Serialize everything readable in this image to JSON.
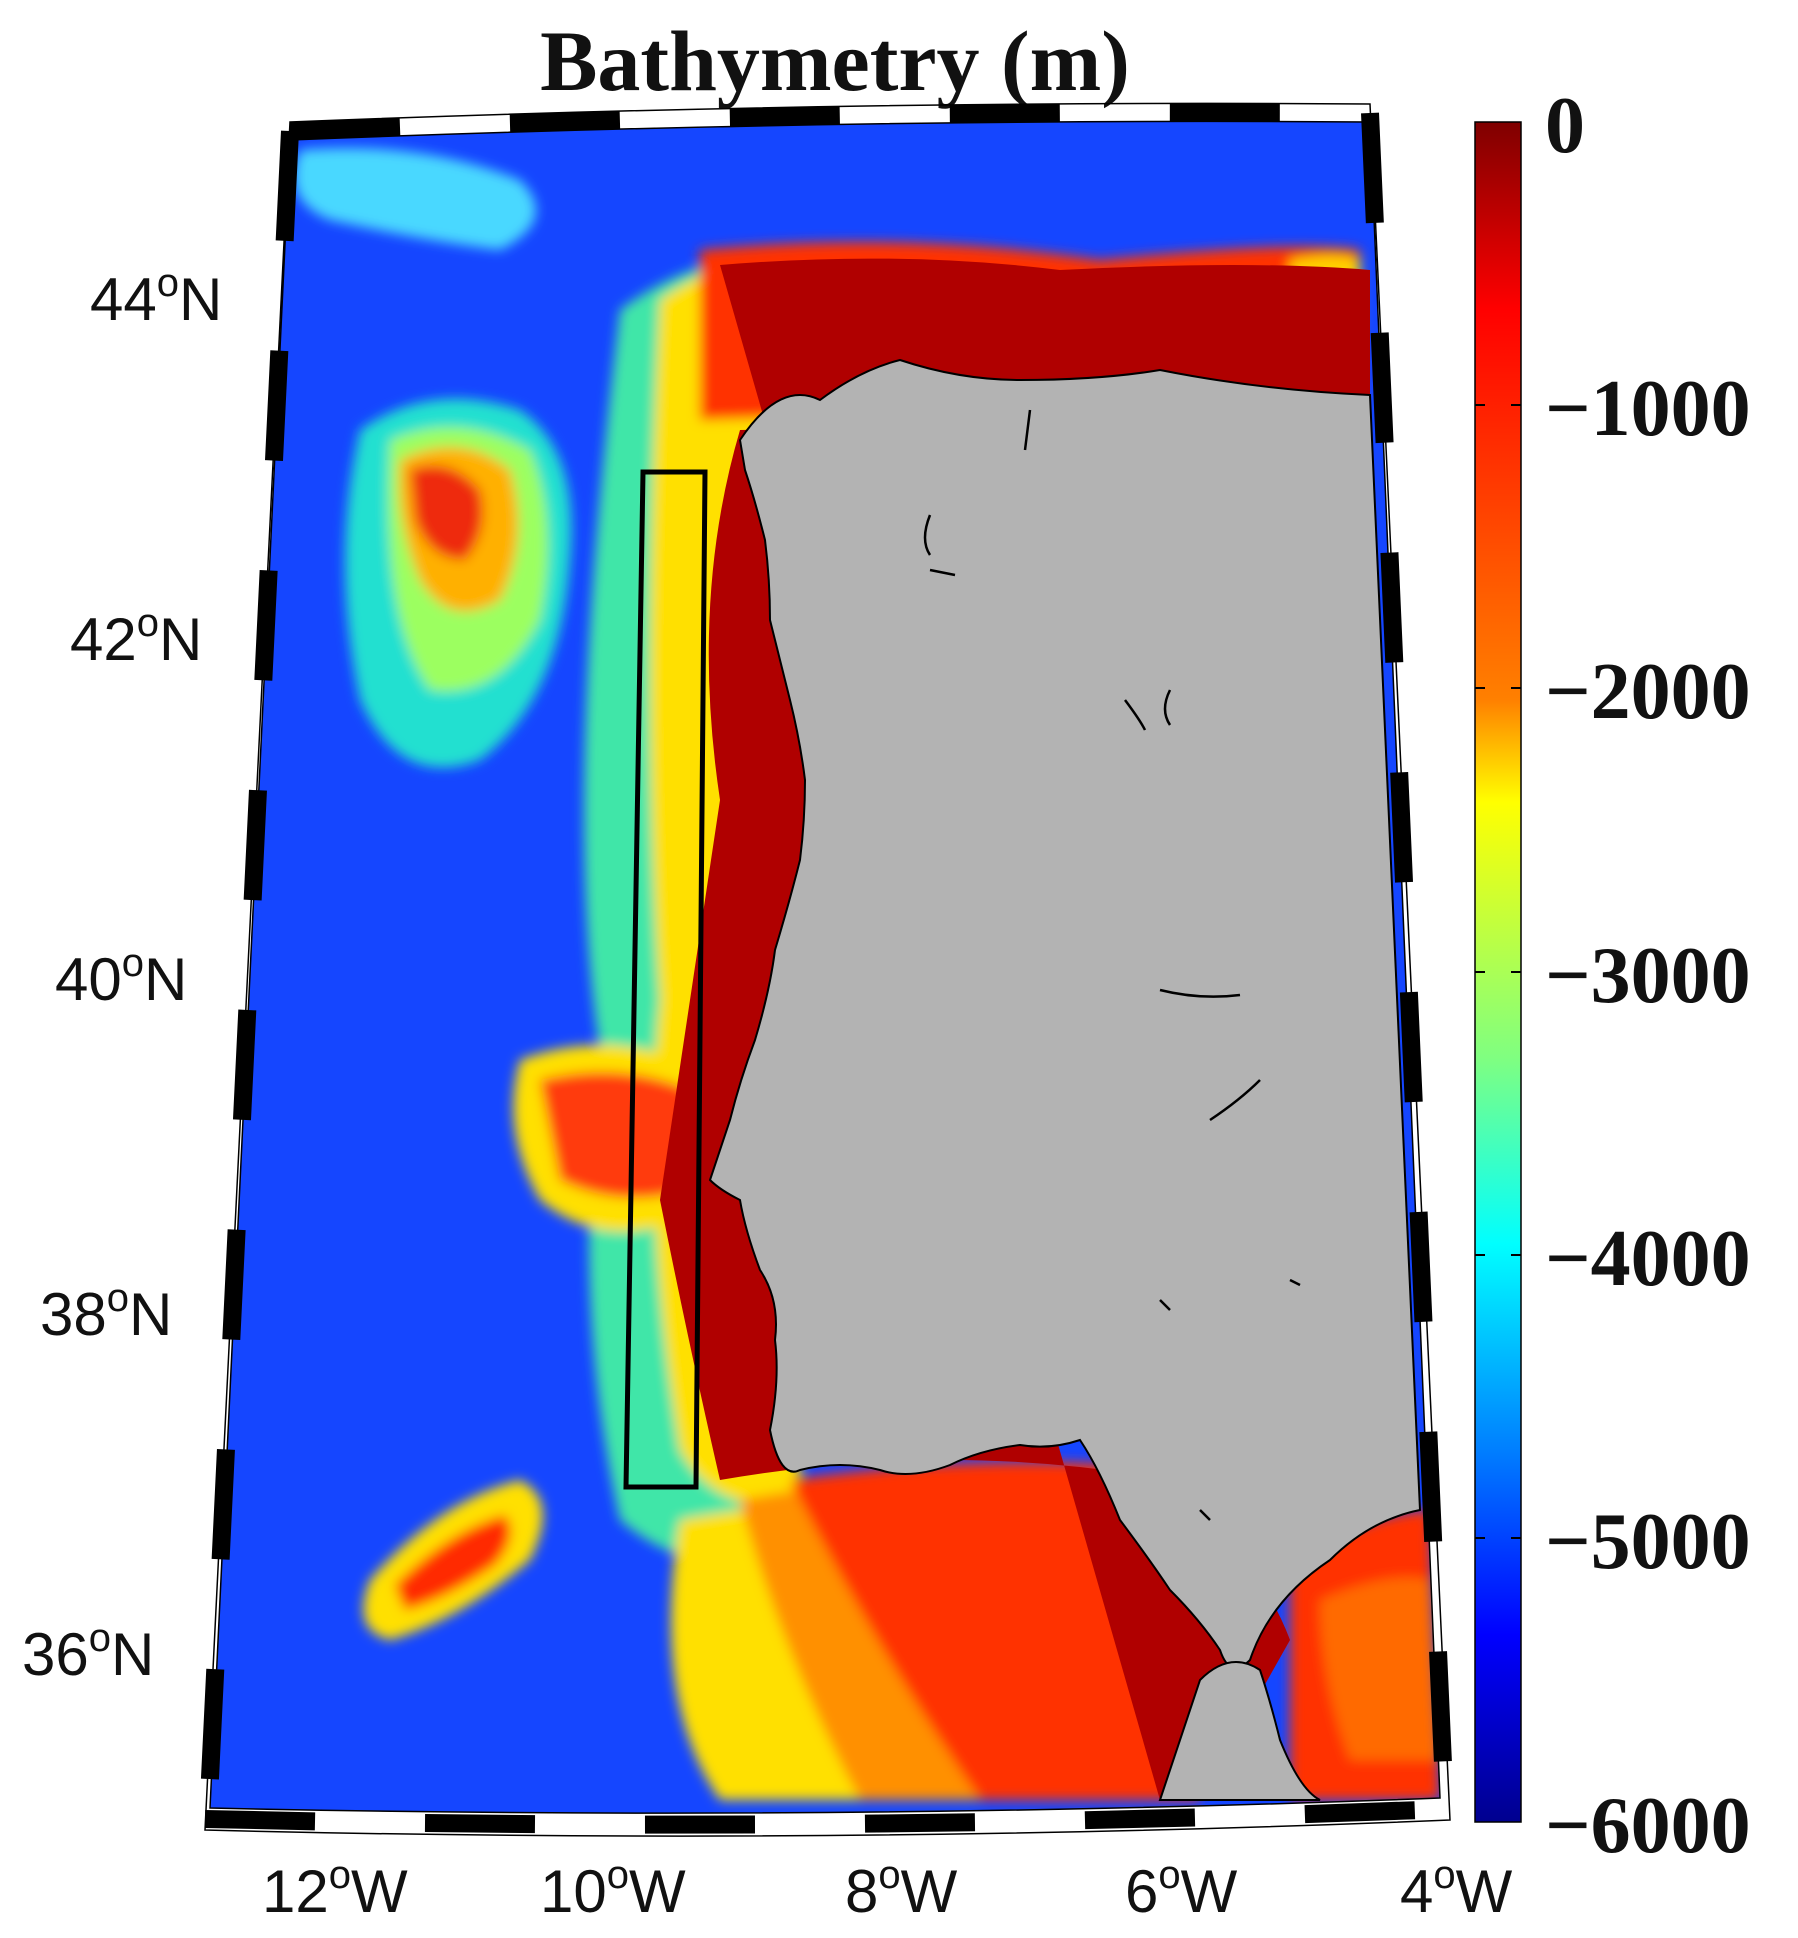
{
  "map": {
    "title": "Bathymetry (m)",
    "projection": "conic",
    "lon_range": [
      -13,
      -4
    ],
    "lat_range": [
      35,
      45
    ],
    "land_color": "#b3b3b3",
    "features": [
      "bathymetry-field",
      "iberian-peninsula-land",
      "coastline",
      "study-area-box",
      "frame-border"
    ],
    "study_box": {
      "lon": [
        -10,
        -9.5
      ],
      "lat": [
        37,
        43
      ],
      "stroke": "#000000"
    },
    "lat_ticks": [
      {
        "number": "44",
        "sup": "o",
        "hemi": "N",
        "value": 44
      },
      {
        "number": "42",
        "sup": "o",
        "hemi": "N",
        "value": 42
      },
      {
        "number": "40",
        "sup": "o",
        "hemi": "N",
        "value": 40
      },
      {
        "number": "38",
        "sup": "o",
        "hemi": "N",
        "value": 38
      },
      {
        "number": "36",
        "sup": "o",
        "hemi": "N",
        "value": 36
      }
    ],
    "lon_ticks": [
      {
        "number": "12",
        "sup": "o",
        "hemi": "W",
        "value": -12
      },
      {
        "number": "10",
        "sup": "o",
        "hemi": "W",
        "value": -10
      },
      {
        "number": "8",
        "sup": "o",
        "hemi": "W",
        "value": -8
      },
      {
        "number": "6",
        "sup": "o",
        "hemi": "W",
        "value": -6
      },
      {
        "number": "4",
        "sup": "o",
        "hemi": "W",
        "value": -4
      }
    ]
  },
  "colorbar": {
    "colormap": "jet",
    "range": [
      -6000,
      0
    ],
    "labels": [
      "0",
      "−1000",
      "−2000",
      "−3000",
      "−4000",
      "−5000",
      "−6000"
    ],
    "values": [
      0,
      -1000,
      -2000,
      -3000,
      -4000,
      -5000,
      -6000
    ],
    "stops": [
      "#7f0000",
      "#ff0000",
      "#ff8000",
      "#ffff00",
      "#80ff80",
      "#00ffff",
      "#0080ff",
      "#0000ff",
      "#00008f"
    ]
  }
}
